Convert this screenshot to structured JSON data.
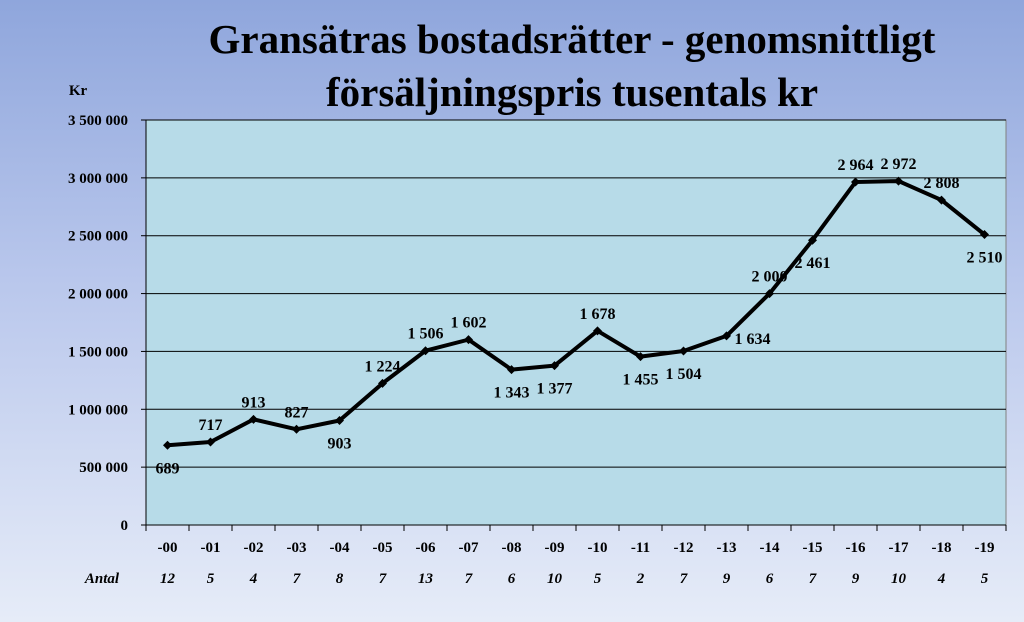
{
  "chart_data": {
    "type": "line",
    "title_line1": "Gransätras bostadsrätter - genomsnittligt",
    "title_line2": "försäljningspris tusentals kr",
    "ylabel": "Kr",
    "ylim": [
      0,
      3500000
    ],
    "yticks": [
      0,
      500000,
      1000000,
      1500000,
      2000000,
      2500000,
      3000000,
      3500000
    ],
    "ytick_labels": [
      "0",
      "500 000",
      "1 000 000",
      "1 500 000",
      "2 000 000",
      "2 500 000",
      "3 000 000",
      "3 500 000"
    ],
    "categories": [
      "-00",
      "-01",
      "-02",
      "-03",
      "-04",
      "-05",
      "-06",
      "-07",
      "-08",
      "-09",
      "-10",
      "-11",
      "-12",
      "-13",
      "-14",
      "-15",
      "-16",
      "-17",
      "-18",
      "-19"
    ],
    "values": [
      689000,
      717000,
      913000,
      827000,
      903000,
      1224000,
      1506000,
      1602000,
      1343000,
      1377000,
      1678000,
      1455000,
      1504000,
      1634000,
      2000000,
      2461000,
      2964000,
      2972000,
      2808000,
      2510000
    ],
    "data_labels": [
      "689",
      "717",
      "913",
      "827",
      "903",
      "1 224",
      "1 506",
      "1 602",
      "1 343",
      "1 377",
      "1 678",
      "1 455",
      "1 504",
      "1 634",
      "2 000",
      "2 461",
      "2 964",
      "2 972",
      "2 808",
      "2 510"
    ],
    "label_pos": [
      "below",
      "above",
      "above",
      "above",
      "below",
      "above",
      "above",
      "above",
      "below",
      "below",
      "above",
      "below",
      "below",
      "right",
      "above",
      "below",
      "above",
      "above",
      "above",
      "below"
    ],
    "row_label": "Antal",
    "counts": [
      "12",
      "5",
      "4",
      "7",
      "8",
      "7",
      "13",
      "7",
      "6",
      "10",
      "5",
      "2",
      "7",
      "9",
      "6",
      "7",
      "9",
      "10",
      "4",
      "5"
    ],
    "grid": true,
    "colors": {
      "plot_bg": "#b7dbe8",
      "line": "#000000",
      "grid": "#000000"
    }
  }
}
